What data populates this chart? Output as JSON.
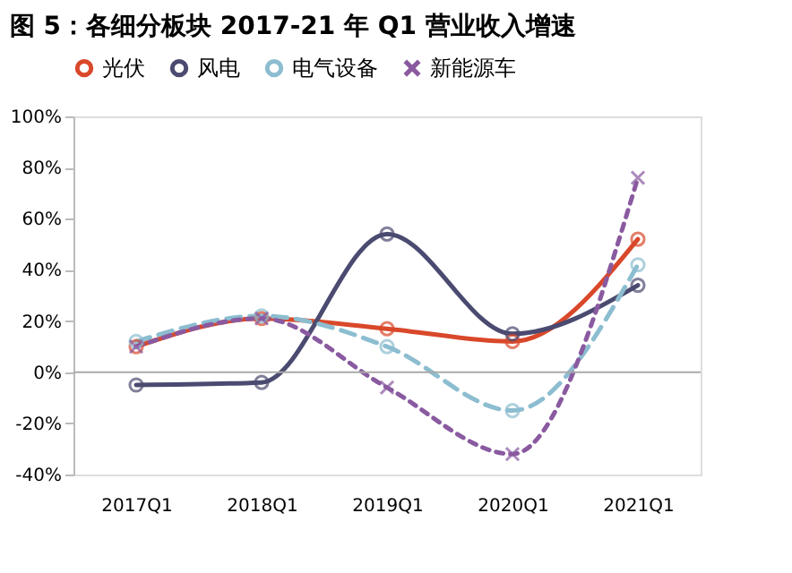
{
  "chart_data": {
    "type": "line",
    "title": "图 5：各细分板块 2017-21 年 Q1 营业收入增速",
    "categories": [
      "2017Q1",
      "2018Q1",
      "2019Q1",
      "2020Q1",
      "2021Q1"
    ],
    "series": [
      {
        "name": "光伏",
        "color": "#d9482a",
        "values": [
          10,
          21,
          17,
          12,
          52
        ],
        "marker": "circle",
        "line_style": "solid"
      },
      {
        "name": "风电",
        "color": "#4b4a70",
        "values": [
          -5,
          -4,
          54,
          15,
          34
        ],
        "marker": "circle",
        "line_style": "solid"
      },
      {
        "name": "电气设备",
        "color": "#8cbdd0",
        "values": [
          12,
          22,
          10,
          -15,
          42
        ],
        "marker": "circle",
        "line_style": "dashed"
      },
      {
        "name": "新能源车",
        "color": "#8a5aa0",
        "values": [
          10,
          21,
          -6,
          -32,
          76
        ],
        "marker": "cross",
        "line_style": "dotted"
      }
    ],
    "ylim": [
      -40,
      100
    ],
    "yticks": [
      {
        "value": -40,
        "label": "-40%"
      },
      {
        "value": -20,
        "label": "-20%"
      },
      {
        "value": 0,
        "label": "0%"
      },
      {
        "value": 20,
        "label": "20%"
      },
      {
        "value": 40,
        "label": "40%"
      },
      {
        "value": 60,
        "label": "60%"
      },
      {
        "value": 80,
        "label": "80%"
      },
      {
        "value": 100,
        "label": "100%"
      }
    ],
    "ref_lines": [
      {
        "axis": "y",
        "value": 0,
        "color": "#aaaaaa"
      }
    ],
    "grid": false,
    "legend": "top"
  }
}
